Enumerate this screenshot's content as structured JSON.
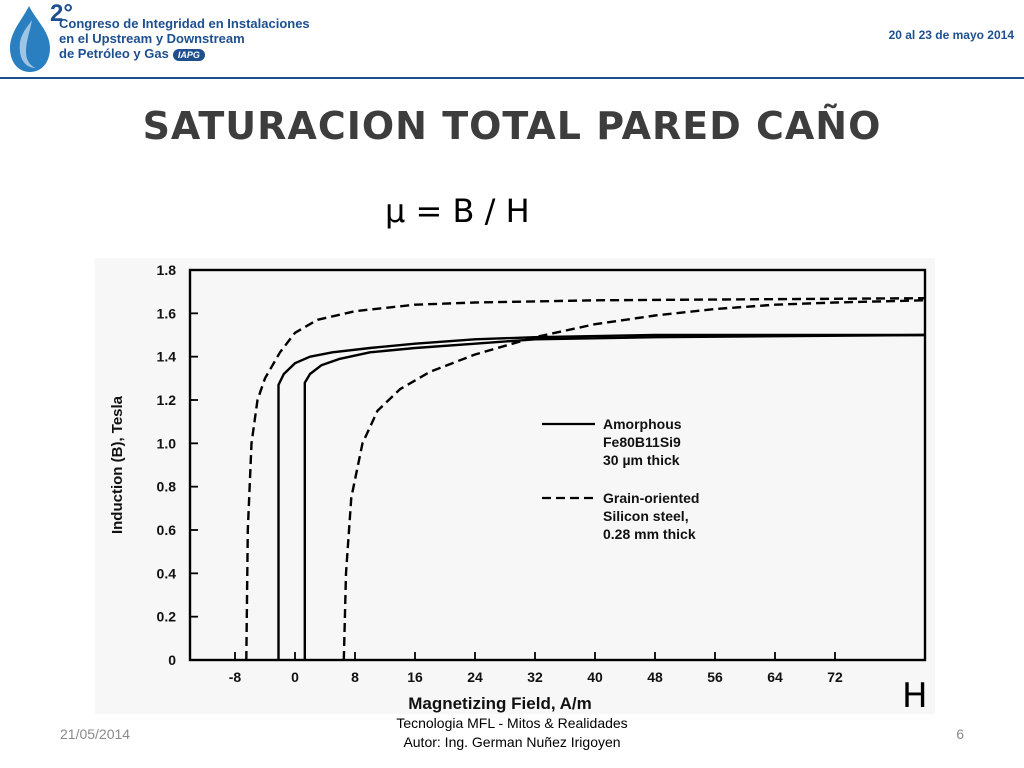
{
  "header": {
    "logo_number": "2°",
    "logo_lines": [
      "Congreso de Integridad en Instalaciones",
      "en el Upstream y Downstream",
      "de Petróleo y Gas"
    ],
    "logo_badge": "IAPG",
    "event_dates": "20 al 23 de mayo 2014"
  },
  "slide": {
    "title": "SATURACION TOTAL PARED CAÑO",
    "formula": "µ = B / H",
    "axis_letter_b": "B",
    "axis_letter_h": "H"
  },
  "footer": {
    "date": "21/05/2014",
    "line1": "Tecnologia MFL  - Mitos & Realidades",
    "line2": "Autor: Ing. German Nuñez Irigoyen",
    "page_number": "6"
  },
  "chart_data": {
    "type": "line",
    "xlabel": "Magnetizing Field, A/m",
    "ylabel": "Induction (B), Tesla",
    "xlim": [
      -14,
      84
    ],
    "ylim": [
      0,
      1.8
    ],
    "x_ticks": [
      "-8",
      "0",
      "8",
      "16",
      "24",
      "32",
      "40",
      "48",
      "56",
      "64",
      "72"
    ],
    "x_tick_values": [
      -8,
      0,
      8,
      16,
      24,
      32,
      40,
      48,
      56,
      64,
      72
    ],
    "y_ticks": [
      "0",
      "0.2",
      "0.4",
      "0.6",
      "0.8",
      "1.0",
      "1.2",
      "1.4",
      "1.6",
      "1.8"
    ],
    "y_tick_values": [
      0,
      0.2,
      0.4,
      0.6,
      0.8,
      1.0,
      1.2,
      1.4,
      1.6,
      1.8
    ],
    "grid": false,
    "legend_position": "center-right",
    "series": [
      {
        "name": "Amorphous Fe80B11Si9 30 µm thick",
        "legend_lines": [
          "Amorphous",
          "Fe80B11Si9",
          "30 µm thick"
        ],
        "style": "solid",
        "branches": [
          [
            [
              -2.2,
              0
            ],
            [
              -2.2,
              1.27
            ],
            [
              -1.5,
              1.32
            ],
            [
              0,
              1.37
            ],
            [
              2,
              1.4
            ],
            [
              5,
              1.42
            ],
            [
              10,
              1.44
            ],
            [
              16,
              1.46
            ],
            [
              24,
              1.48
            ],
            [
              32,
              1.49
            ],
            [
              48,
              1.5
            ],
            [
              84,
              1.5
            ]
          ],
          [
            [
              1.3,
              0
            ],
            [
              1.3,
              1.28
            ],
            [
              2,
              1.32
            ],
            [
              3.5,
              1.36
            ],
            [
              6,
              1.39
            ],
            [
              10,
              1.42
            ],
            [
              16,
              1.44
            ],
            [
              24,
              1.46
            ],
            [
              32,
              1.48
            ],
            [
              48,
              1.49
            ],
            [
              84,
              1.5
            ]
          ]
        ]
      },
      {
        "name": "Grain-oriented Silicon steel, 0.28 mm thick",
        "legend_lines": [
          "Grain-oriented",
          "Silicon steel,",
          "0.28 mm thick"
        ],
        "style": "dashed",
        "branches": [
          [
            [
              -6.5,
              0
            ],
            [
              -6.3,
              0.6
            ],
            [
              -5.8,
              1.0
            ],
            [
              -5,
              1.2
            ],
            [
              -4,
              1.3
            ],
            [
              -2,
              1.42
            ],
            [
              0,
              1.51
            ],
            [
              3,
              1.57
            ],
            [
              8,
              1.61
            ],
            [
              16,
              1.64
            ],
            [
              24,
              1.65
            ],
            [
              40,
              1.66
            ],
            [
              84,
              1.67
            ]
          ],
          [
            [
              6.5,
              0
            ],
            [
              6.8,
              0.4
            ],
            [
              7.5,
              0.75
            ],
            [
              9,
              1.0
            ],
            [
              11,
              1.15
            ],
            [
              14,
              1.25
            ],
            [
              18,
              1.33
            ],
            [
              24,
              1.41
            ],
            [
              32,
              1.49
            ],
            [
              40,
              1.55
            ],
            [
              48,
              1.59
            ],
            [
              56,
              1.62
            ],
            [
              64,
              1.64
            ],
            [
              72,
              1.65
            ],
            [
              84,
              1.66
            ]
          ]
        ]
      }
    ]
  }
}
